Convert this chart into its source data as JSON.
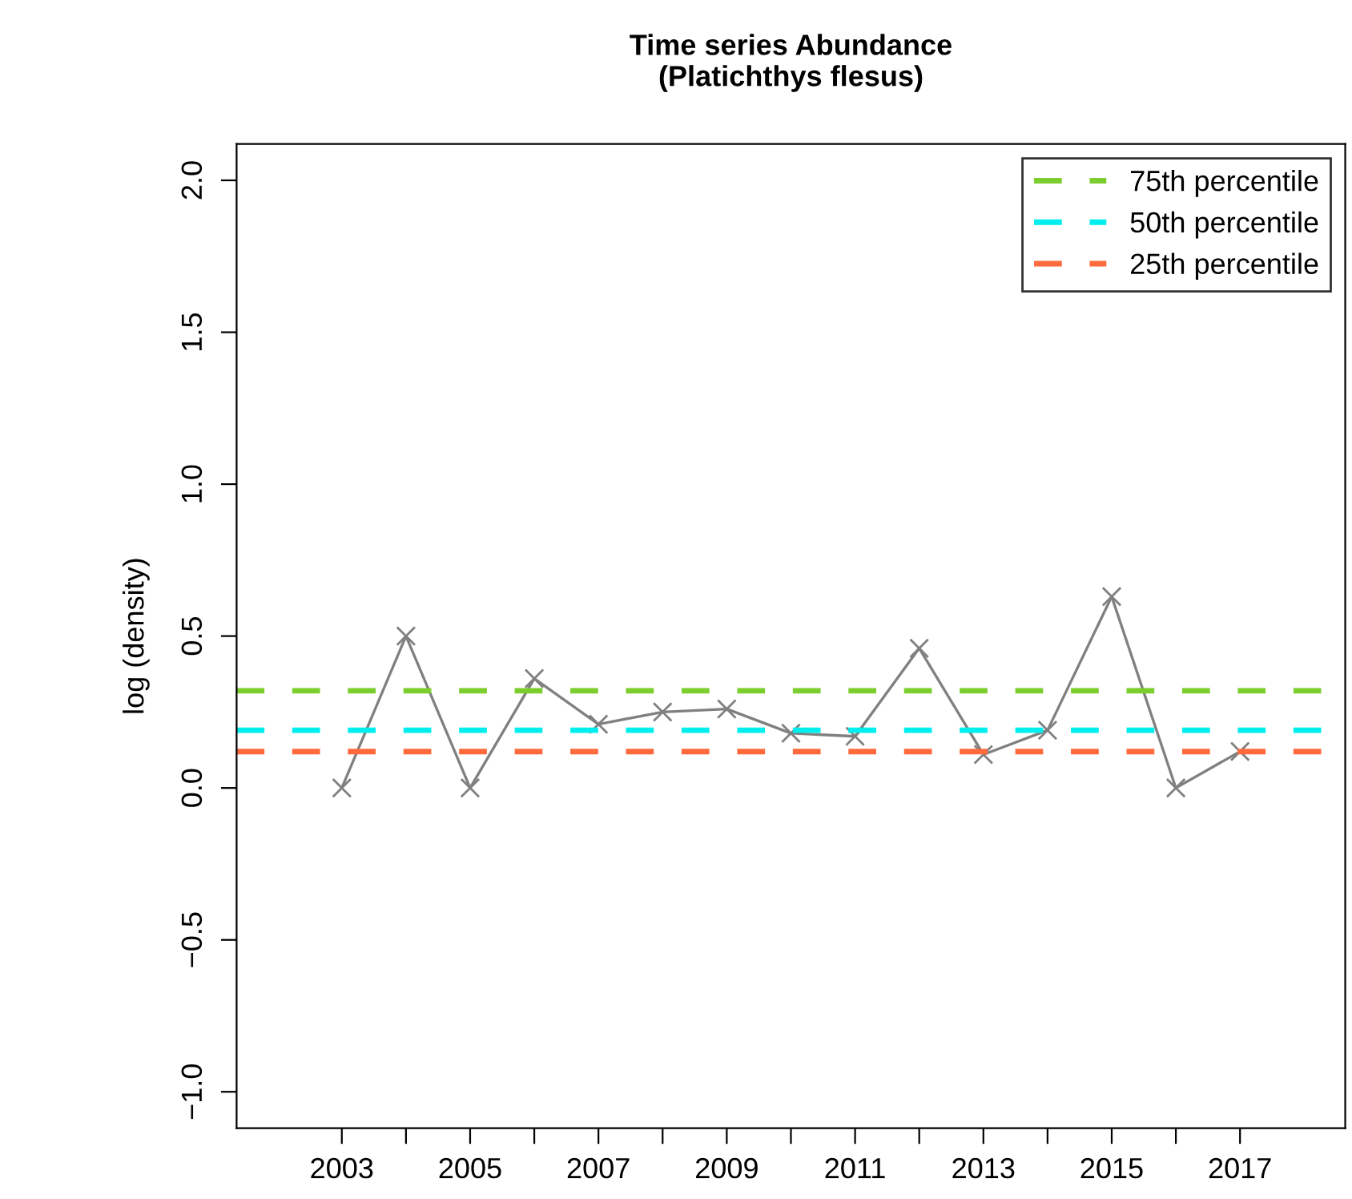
{
  "chart_data": {
    "type": "line",
    "title": "Time series Abundance\n(Platichthys flesus)",
    "ylabel": "log (density)",
    "x": [
      2003,
      2004,
      2005,
      2006,
      2007,
      2008,
      2009,
      2010,
      2011,
      2012,
      2013,
      2014,
      2015,
      2016,
      2017
    ],
    "series": [
      {
        "color": "#808080",
        "values": [
          0,
          0.5,
          0,
          0.36,
          0.21,
          0.25,
          0.26,
          0.18,
          0.17,
          0.46,
          0.11,
          0.19,
          0.63,
          0,
          0.12
        ]
      }
    ],
    "marker": "cross",
    "line_style": "solid",
    "grid": false,
    "legend": "top right",
    "xlim": [
      2001.36,
      2018.64
    ],
    "ylim": [
      -1.12,
      2.12
    ],
    "xticks": [
      2003,
      {
        "value": 2004,
        "label": null
      },
      2005,
      {
        "value": 2006,
        "label": null
      },
      2007,
      {
        "value": 2008,
        "label": null
      },
      2009,
      {
        "value": 2010,
        "label": null
      },
      2011,
      {
        "value": 2012,
        "label": null
      },
      2013,
      {
        "value": 2014,
        "label": null
      },
      2015,
      {
        "value": 2016,
        "label": null
      },
      2017
    ],
    "yticks": [
      {
        "value": -1,
        "label": "−1.0"
      },
      {
        "value": -0.5,
        "label": "−0.5"
      },
      {
        "value": 0,
        "label": "0.0"
      },
      0.5,
      {
        "value": 1,
        "label": "1.0"
      },
      1.5,
      {
        "value": 2,
        "label": "2.0"
      }
    ],
    "ref_lines": [
      {
        "axis": "y",
        "value": 0.32,
        "label": "75th percentile",
        "color": "#7ccd2e",
        "line_style": "dashed"
      },
      {
        "axis": "y",
        "value": 0.19,
        "label": "50th percentile",
        "color": "#00eeee",
        "line_style": "dashed"
      },
      {
        "axis": "y",
        "value": 0.12,
        "label": "25th percentile",
        "color": "#ff6a3d",
        "line_style": "dashed"
      }
    ]
  }
}
